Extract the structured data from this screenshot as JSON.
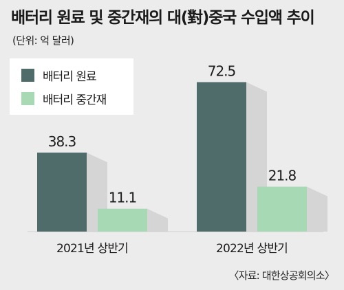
{
  "chart_data": {
    "type": "bar",
    "title": "배터리 원료 및 중간재의 대(對)중국 수입액 추이",
    "unit": "(단위: 억 달러)",
    "categories": [
      "2021년 상반기",
      "2022년 상반기"
    ],
    "series": [
      {
        "name": "배터리 원료",
        "values": [
          38.3,
          72.5
        ],
        "color": "#4f6c6a"
      },
      {
        "name": "배터리 중간재",
        "values": [
          11.1,
          21.8
        ],
        "color": "#a7d9b5"
      }
    ],
    "value_labels": [
      [
        "38.3",
        "72.5"
      ],
      [
        "11.1",
        "21.8"
      ]
    ],
    "legend_position": "top-left",
    "grid": false,
    "source": "〈자료: 대한상공회의소〉"
  }
}
